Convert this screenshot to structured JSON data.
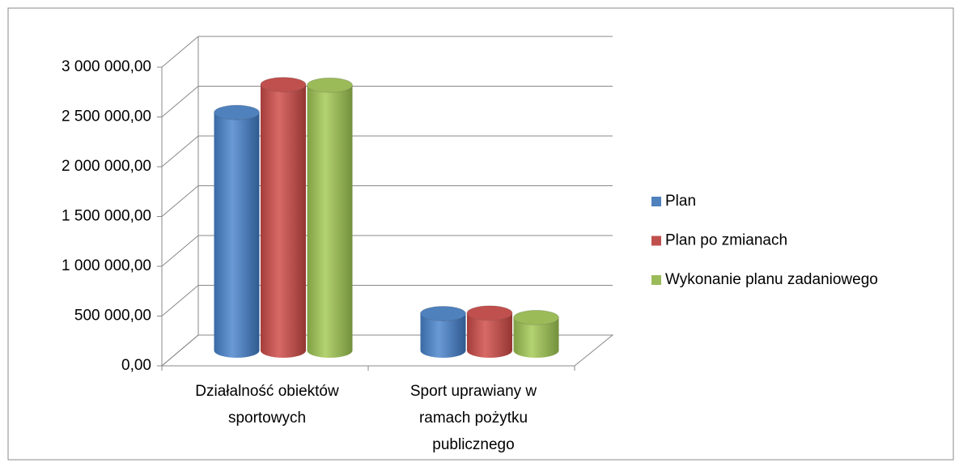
{
  "chart_data": {
    "type": "bar3d",
    "categories": [
      "Działalność obiektów sportowych",
      "Sport uprawiany w ramach pożytku publicznego"
    ],
    "series": [
      {
        "name": "Plan",
        "color": "#4f81bd",
        "values": [
          2390000,
          370000
        ]
      },
      {
        "name": "Plan po zmianach",
        "color": "#c0504d",
        "values": [
          2670000,
          375000
        ]
      },
      {
        "name": "Wykonanie planu zadaniowego",
        "color": "#9bbb59",
        "values": [
          2665000,
          330000
        ]
      }
    ],
    "ylim": [
      0,
      3000000
    ],
    "yticks": [
      {
        "value": 0,
        "label": "0,00"
      },
      {
        "value": 500000,
        "label": "500 000,00"
      },
      {
        "value": 1000000,
        "label": "1 000 000,00"
      },
      {
        "value": 1500000,
        "label": "1 500 000,00"
      },
      {
        "value": 2000000,
        "label": "2 000 000,00"
      },
      {
        "value": 2500000,
        "label": "2 500 000,00"
      },
      {
        "value": 3000000,
        "label": "3 000 000,00"
      }
    ],
    "grid": true,
    "legend": "right"
  }
}
